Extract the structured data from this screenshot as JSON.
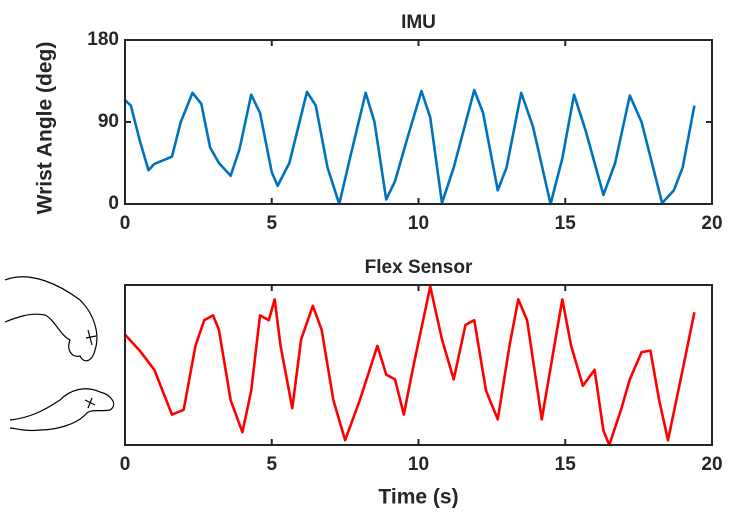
{
  "chart_data": [
    {
      "type": "line",
      "title": "IMU",
      "y_label": "Wrist Angle (deg)",
      "xlim": [
        0,
        20
      ],
      "xticks": [
        0,
        5,
        10,
        15,
        20
      ],
      "ylim": [
        0,
        180
      ],
      "yticks": [
        0,
        90,
        180
      ],
      "series": [
        {
          "name": "IMU",
          "color": "#0072bd",
          "x": [
            0,
            0.2,
            0.5,
            0.8,
            1.0,
            1.3,
            1.6,
            1.9,
            2.3,
            2.6,
            2.9,
            3.2,
            3.6,
            3.9,
            4.3,
            4.6,
            5.0,
            5.2,
            5.6,
            6.2,
            6.5,
            6.9,
            7.3,
            7.7,
            8.2,
            8.5,
            8.9,
            9.2,
            9.6,
            10.1,
            10.4,
            10.8,
            11.2,
            11.9,
            12.2,
            12.7,
            13.0,
            13.5,
            13.9,
            14.5,
            14.9,
            15.3,
            15.7,
            16.3,
            16.7,
            17.2,
            17.6,
            18.3,
            18.7,
            19.0,
            19.4
          ],
          "values": [
            114,
            108,
            70,
            37,
            44,
            48,
            52,
            90,
            122,
            110,
            62,
            45,
            31,
            60,
            120,
            100,
            35,
            20,
            45,
            123,
            108,
            40,
            0,
            55,
            122,
            90,
            5,
            25,
            70,
            124,
            95,
            1,
            40,
            125,
            100,
            15,
            40,
            122,
            85,
            0,
            50,
            120,
            80,
            10,
            45,
            119,
            90,
            1,
            15,
            40,
            108
          ]
        }
      ]
    },
    {
      "type": "line",
      "title": "Flex Sensor",
      "x_label": "Time (s)",
      "xlim": [
        0,
        20
      ],
      "xticks": [
        0,
        5,
        10,
        15,
        20
      ],
      "ylim": [
        0,
        100
      ],
      "series": [
        {
          "name": "Flex Sensor",
          "color": "#ff0000",
          "x": [
            0,
            0.5,
            1.0,
            1.6,
            2.0,
            2.4,
            2.7,
            3.0,
            3.2,
            3.6,
            4.0,
            4.3,
            4.6,
            4.9,
            5.1,
            5.3,
            5.7,
            6.0,
            6.4,
            6.7,
            7.1,
            7.5,
            8.0,
            8.6,
            8.9,
            9.2,
            9.5,
            9.8,
            10.4,
            10.8,
            11.2,
            11.6,
            11.9,
            12.3,
            12.7,
            13.1,
            13.4,
            13.7,
            14.0,
            14.2,
            14.6,
            14.9,
            15.2,
            15.6,
            16.0,
            16.3,
            16.5,
            16.9,
            17.2,
            17.6,
            17.9,
            18.2,
            18.5,
            19.0,
            19.4
          ],
          "values": [
            69,
            59,
            47,
            19,
            22,
            62,
            78,
            81,
            72,
            28,
            8,
            34,
            81,
            78,
            91,
            62,
            23,
            66,
            87,
            72,
            28,
            3,
            28,
            62,
            44,
            41,
            19,
            47,
            99,
            66,
            41,
            75,
            78,
            34,
            16,
            62,
            91,
            78,
            41,
            16,
            59,
            91,
            62,
            37,
            47,
            9,
            0,
            22,
            41,
            58,
            59,
            28,
            3,
            47,
            83
          ]
        }
      ]
    }
  ]
}
